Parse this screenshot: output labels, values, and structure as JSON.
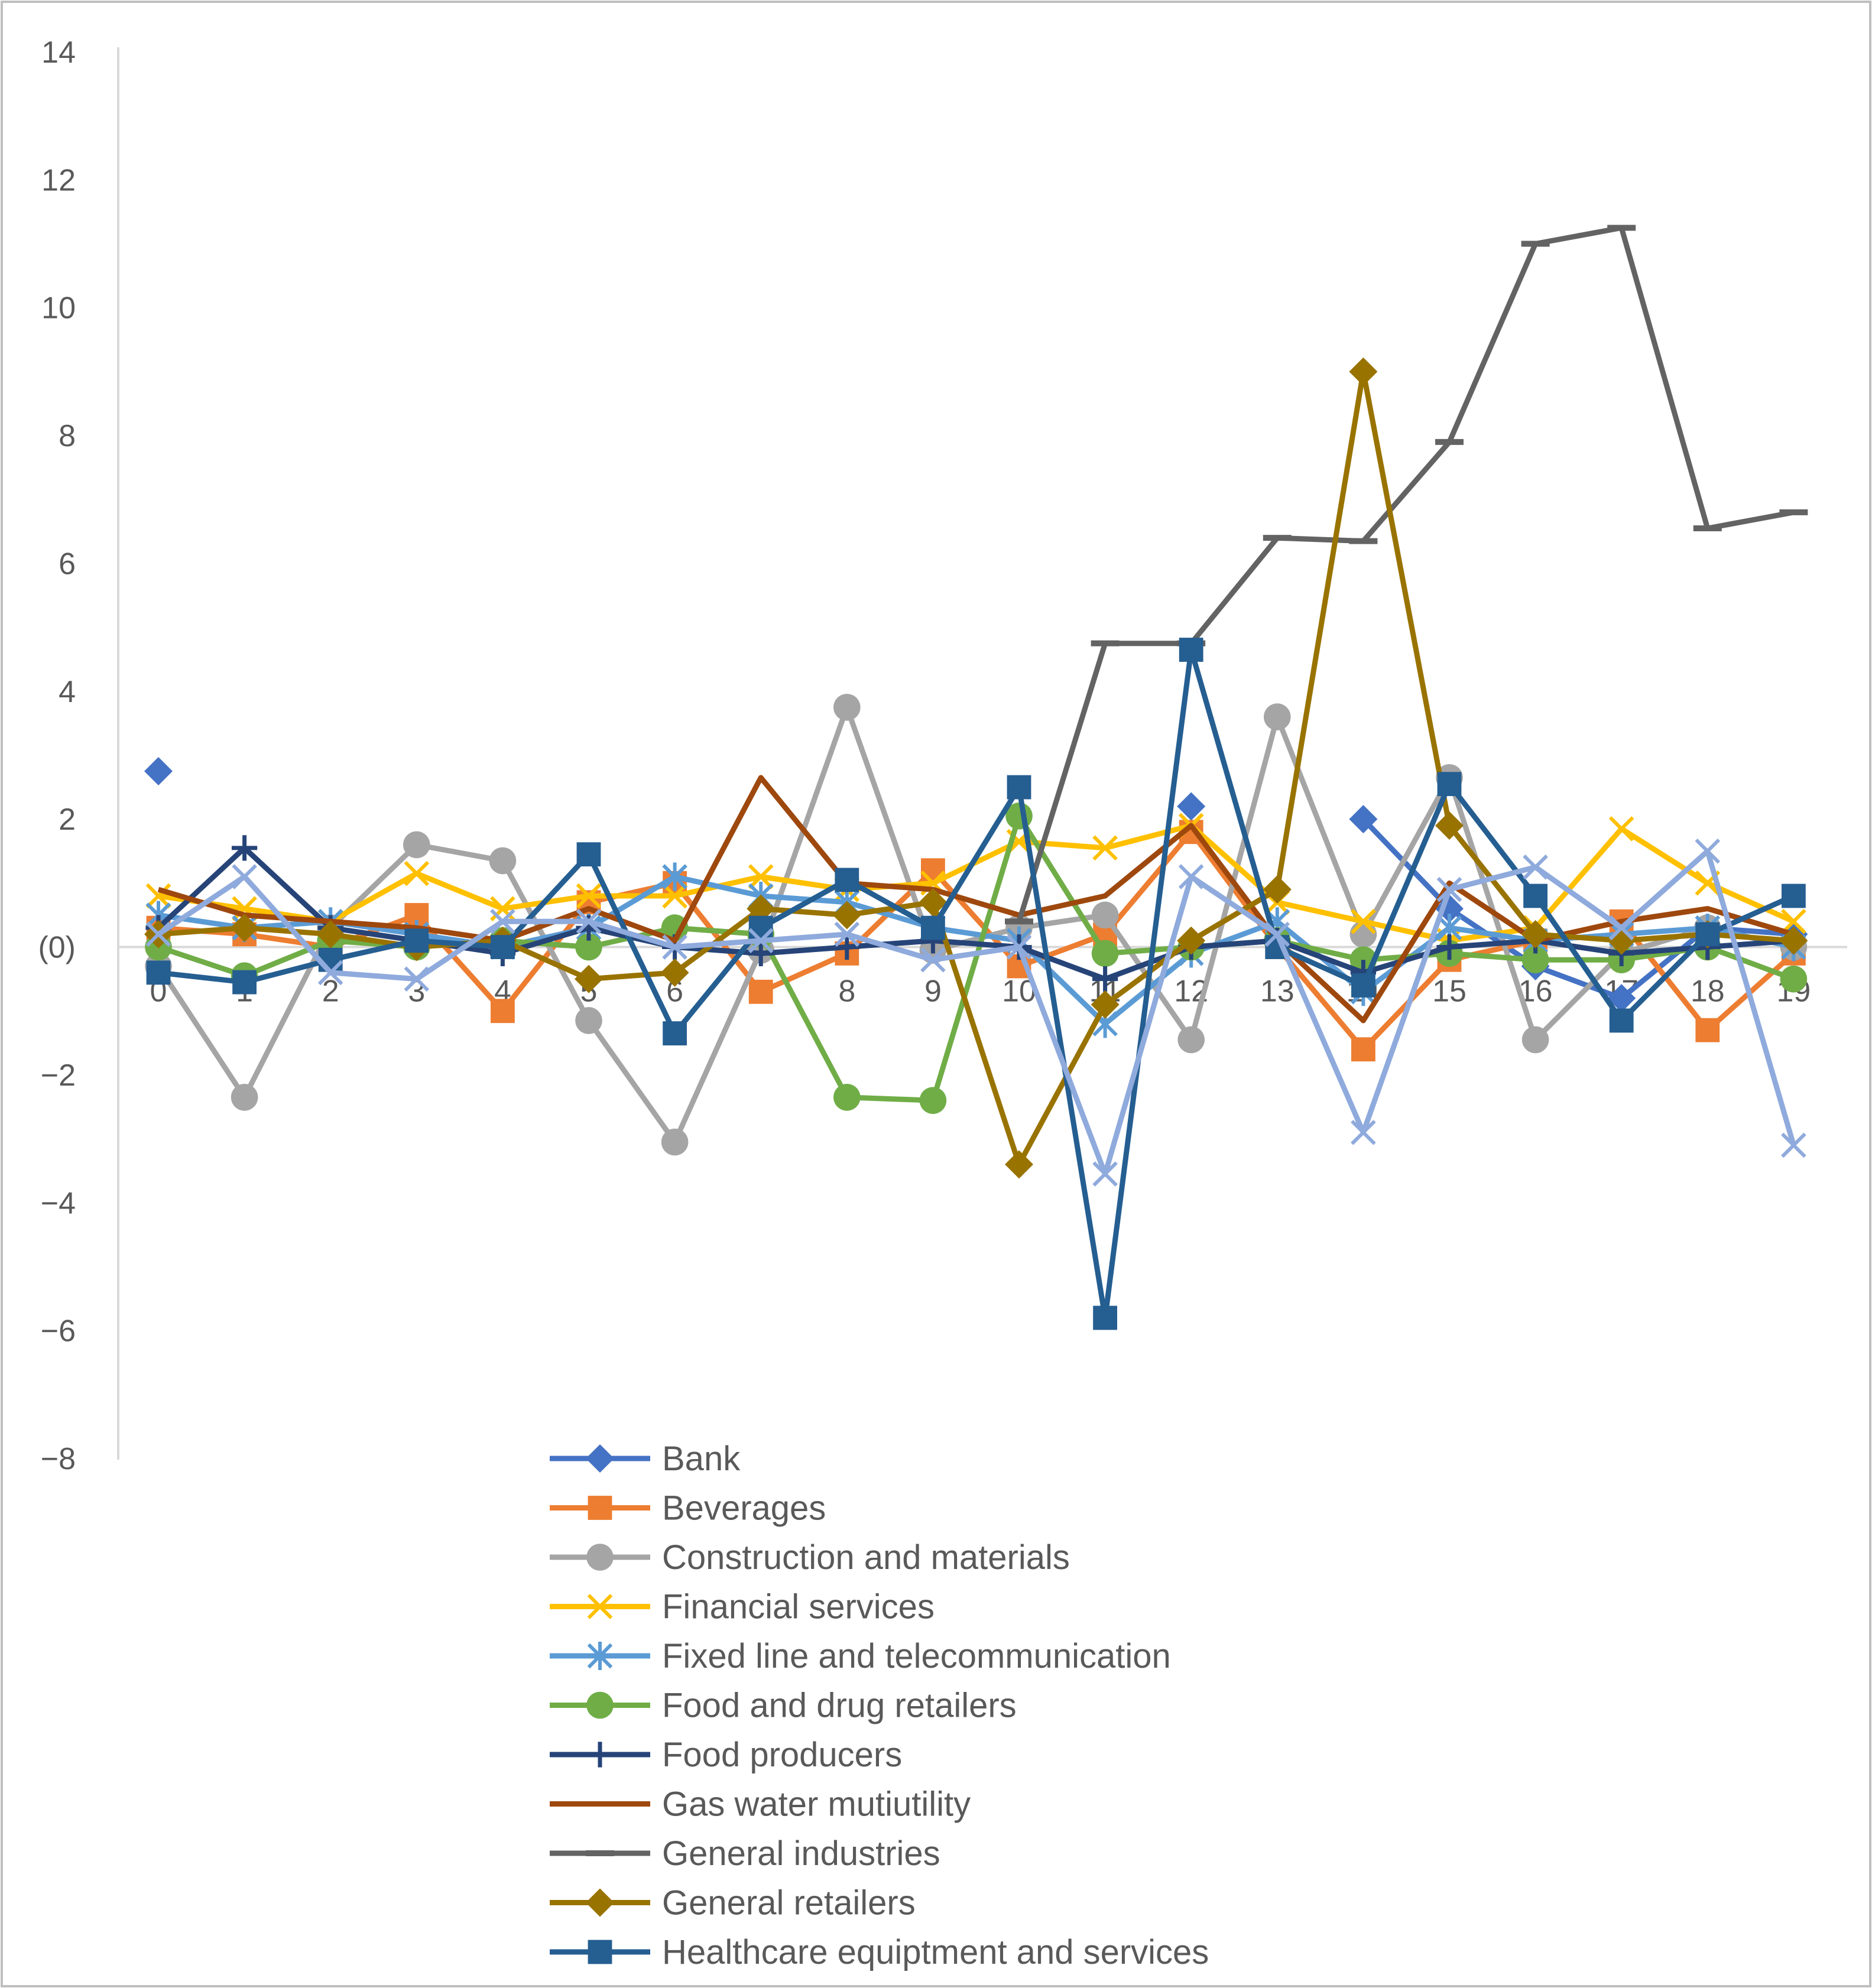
{
  "chart_data": {
    "type": "line",
    "title": "",
    "xlabel": "",
    "ylabel": "",
    "x": [
      0,
      1,
      2,
      3,
      4,
      5,
      6,
      7,
      8,
      9,
      10,
      11,
      12,
      13,
      14,
      15,
      16,
      17,
      18,
      19
    ],
    "ylim": [
      -8,
      14
    ],
    "yticks": [
      14,
      12,
      10,
      8,
      6,
      4,
      2,
      0,
      -2,
      -4,
      -6,
      -8
    ],
    "ytick_labels": [
      "14",
      "12",
      "10",
      "8",
      "6",
      "4",
      "2",
      "(0)",
      "−2",
      "−4",
      "−6",
      "−8"
    ],
    "xtick_labels": [
      "0",
      "1",
      "2",
      "3",
      "4",
      "5",
      "6",
      "7",
      "8",
      "9",
      "10",
      "11",
      "12",
      "13",
      "14",
      "15",
      "16",
      "17",
      "18",
      "19"
    ],
    "legend_position": "bottom-center",
    "series": [
      {
        "name": "Bank",
        "color": "#4472C4",
        "marker": "diamond",
        "values": [
          2.75,
          null,
          null,
          null,
          null,
          null,
          null,
          null,
          null,
          null,
          null,
          null,
          2.2,
          null,
          2.0,
          0.6,
          -0.3,
          -0.8,
          0.3,
          0.2
        ]
      },
      {
        "name": "Beverages",
        "color": "#ED7D31",
        "marker": "square",
        "values": [
          0.3,
          0.2,
          0.0,
          0.5,
          -1.0,
          0.7,
          1.0,
          -0.7,
          -0.1,
          1.2,
          -0.3,
          0.2,
          1.8,
          0.0,
          -1.6,
          -0.2,
          0.1,
          0.4,
          -1.3,
          -0.1
        ]
      },
      {
        "name": "Construction and materials",
        "color": "#A5A5A5",
        "marker": "circle",
        "values": [
          -0.3,
          -2.35,
          0.3,
          1.6,
          1.35,
          -1.15,
          -3.05,
          -0.05,
          3.75,
          -0.05,
          0.3,
          0.5,
          -1.45,
          3.6,
          0.2,
          2.65,
          -1.45,
          -0.1,
          0.3,
          0.0
        ]
      },
      {
        "name": "Financial services",
        "color": "#FFC000",
        "marker": "x",
        "values": [
          0.8,
          0.6,
          0.4,
          1.15,
          0.6,
          0.8,
          0.8,
          1.1,
          0.9,
          1.0,
          1.65,
          1.55,
          1.9,
          0.7,
          0.4,
          0.1,
          0.3,
          1.85,
          1.0,
          0.4
        ]
      },
      {
        "name": "Fixed line and telecommunication",
        "color": "#5B9BD5",
        "marker": "star",
        "values": [
          0.5,
          0.3,
          0.4,
          0.2,
          0.0,
          0.3,
          1.1,
          0.8,
          0.7,
          0.3,
          0.1,
          -1.2,
          -0.1,
          0.4,
          -0.7,
          0.3,
          0.1,
          0.2,
          0.3,
          0.0
        ]
      },
      {
        "name": "Food and drug retailers",
        "color": "#70AD47",
        "marker": "circle",
        "values": [
          0.0,
          -0.45,
          0.1,
          0.0,
          0.1,
          0.0,
          0.3,
          0.2,
          -2.35,
          -2.4,
          2.05,
          -0.1,
          0.0,
          0.1,
          -0.2,
          -0.1,
          -0.2,
          -0.2,
          0.0,
          -0.5
        ]
      },
      {
        "name": "Food producers",
        "color": "#264478",
        "marker": "plus",
        "values": [
          0.3,
          1.55,
          0.3,
          0.1,
          -0.1,
          0.3,
          0.0,
          -0.1,
          0.0,
          0.1,
          0.0,
          -0.5,
          0.0,
          0.1,
          -0.4,
          0.0,
          0.1,
          -0.1,
          0.0,
          0.1
        ]
      },
      {
        "name": "Gas water mutiutility",
        "color": "#9E480E",
        "marker": "none",
        "values": [
          0.9,
          0.5,
          0.4,
          0.3,
          0.1,
          0.6,
          0.1,
          2.65,
          1.0,
          0.9,
          0.5,
          0.8,
          1.9,
          0.1,
          -1.15,
          1.0,
          0.1,
          0.4,
          0.6,
          0.2
        ]
      },
      {
        "name": "General industries",
        "color": "#636363",
        "marker": "dash",
        "values": [
          null,
          null,
          null,
          null,
          null,
          null,
          null,
          null,
          null,
          null,
          0.4,
          4.75,
          4.75,
          6.4,
          6.35,
          7.9,
          11.0,
          11.25,
          6.55,
          6.8
        ]
      },
      {
        "name": "General retailers",
        "color": "#997300",
        "marker": "diamond",
        "values": [
          0.2,
          0.3,
          0.2,
          0.0,
          0.1,
          -0.5,
          -0.4,
          0.6,
          0.5,
          0.7,
          -3.4,
          -0.9,
          0.1,
          0.9,
          9.0,
          1.9,
          0.2,
          0.1,
          0.2,
          0.1
        ]
      },
      {
        "name": "Healthcare equiptment and services",
        "color": "#255E91",
        "marker": "square",
        "values": [
          -0.4,
          -0.55,
          -0.2,
          0.1,
          0.0,
          1.45,
          -1.35,
          0.3,
          1.05,
          0.3,
          2.5,
          -5.8,
          4.65,
          0.0,
          -0.6,
          2.55,
          0.8,
          -1.15,
          0.2,
          0.8
        ]
      },
      {
        "name": "",
        "color": "#8FAADC",
        "marker": "x",
        "values": [
          0.2,
          1.1,
          -0.4,
          -0.5,
          0.4,
          0.4,
          0.0,
          0.1,
          0.2,
          -0.2,
          0.0,
          -3.55,
          1.1,
          0.2,
          -2.9,
          0.9,
          1.25,
          0.3,
          1.5,
          -3.1
        ]
      }
    ]
  }
}
